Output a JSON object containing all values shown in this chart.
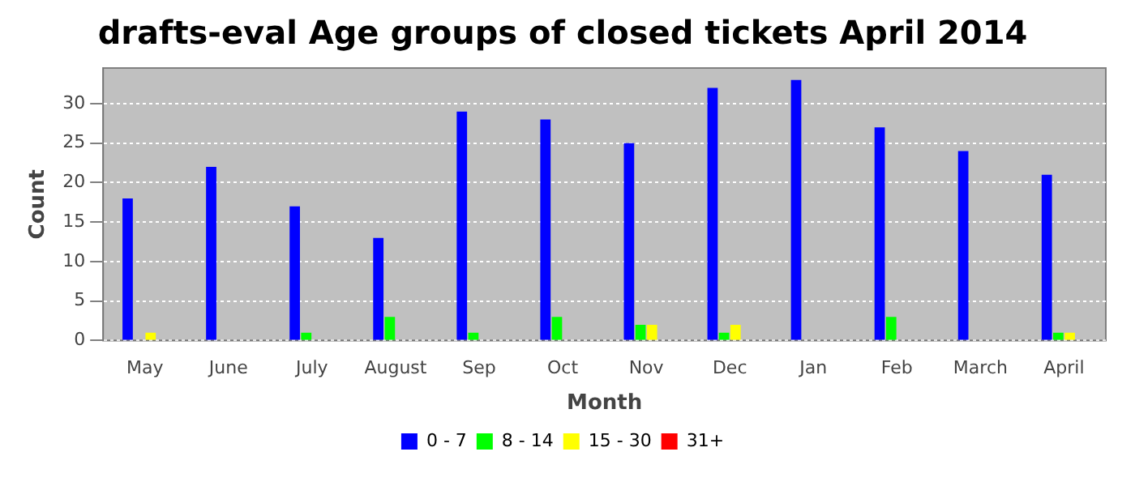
{
  "chart_data": {
    "type": "bar",
    "title": "drafts-eval Age groups of closed tickets April 2014",
    "xlabel": "Month",
    "ylabel": "Count",
    "categories": [
      "May",
      "June",
      "July",
      "August",
      "Sep",
      "Oct",
      "Nov",
      "Dec",
      "Jan",
      "Feb",
      "March",
      "April"
    ],
    "series": [
      {
        "name": "0 - 7",
        "color": "#0000ff",
        "values": [
          18,
          22,
          17,
          13,
          29,
          28,
          25,
          32,
          33,
          27,
          24,
          21
        ]
      },
      {
        "name": "8 - 14",
        "color": "#00ff00",
        "values": [
          0,
          0,
          1,
          3,
          1,
          3,
          2,
          1,
          0,
          3,
          0,
          1
        ]
      },
      {
        "name": "15 - 30",
        "color": "#ffff00",
        "values": [
          1,
          0,
          0,
          0,
          0,
          0,
          2,
          2,
          0,
          0,
          0,
          1
        ]
      },
      {
        "name": "31+",
        "color": "#ff0000",
        "values": [
          0,
          0,
          0,
          0,
          0,
          0,
          0,
          0,
          0,
          0,
          0,
          0
        ]
      }
    ],
    "ylim": [
      0,
      34.5
    ],
    "yticks": [
      0,
      5,
      10,
      15,
      20,
      25,
      30
    ],
    "grid": "y",
    "legend": "bottom"
  }
}
